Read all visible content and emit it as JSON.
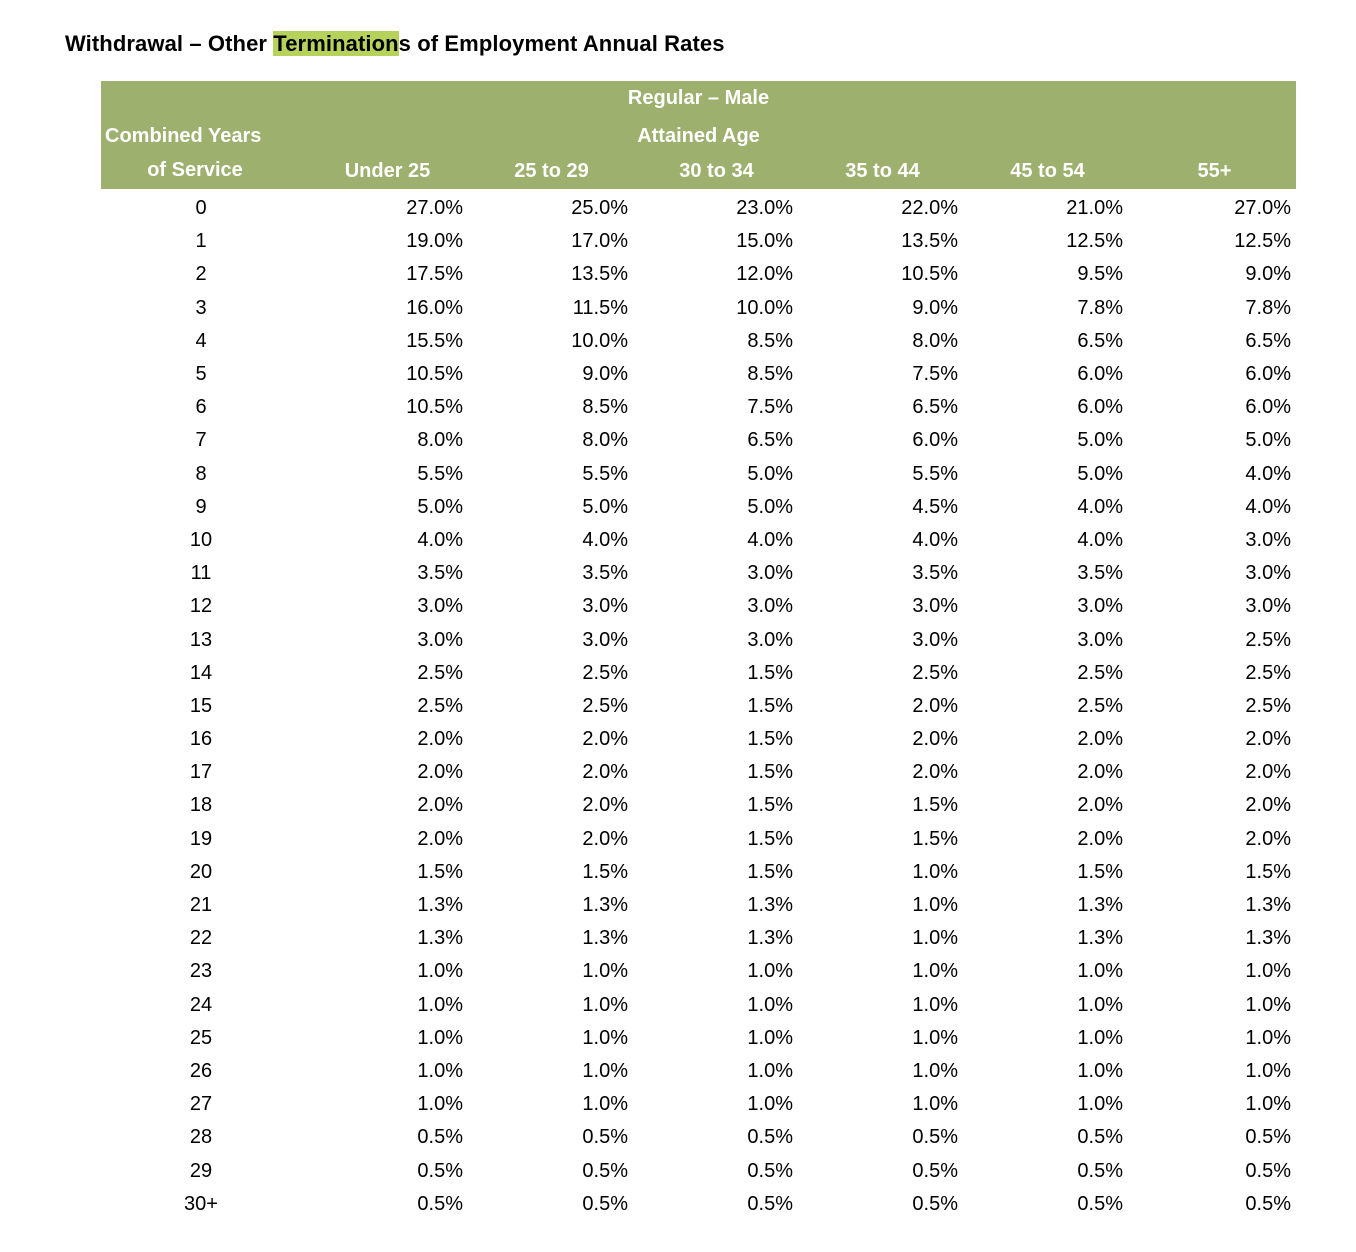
{
  "title": {
    "pre": "Withdrawal – Other ",
    "highlight": "Termination",
    "post": "s of Employment Annual Rates"
  },
  "header": {
    "group": "Regular – Male",
    "service_label_line1": "Combined Years",
    "service_label_line2": "of Service",
    "attained_age": "Attained Age",
    "columns": [
      "Under 25",
      "25 to 29",
      "30 to 34",
      "35 to 44",
      "45 to 54",
      "55+"
    ]
  },
  "rows": [
    {
      "service": "0",
      "values": [
        "27.0%",
        "25.0%",
        "23.0%",
        "22.0%",
        "21.0%",
        "27.0%"
      ]
    },
    {
      "service": "1",
      "values": [
        "19.0%",
        "17.0%",
        "15.0%",
        "13.5%",
        "12.5%",
        "12.5%"
      ]
    },
    {
      "service": "2",
      "values": [
        "17.5%",
        "13.5%",
        "12.0%",
        "10.5%",
        "9.5%",
        "9.0%"
      ]
    },
    {
      "service": "3",
      "values": [
        "16.0%",
        "11.5%",
        "10.0%",
        "9.0%",
        "7.8%",
        "7.8%"
      ]
    },
    {
      "service": "4",
      "values": [
        "15.5%",
        "10.0%",
        "8.5%",
        "8.0%",
        "6.5%",
        "6.5%"
      ]
    },
    {
      "service": "5",
      "values": [
        "10.5%",
        "9.0%",
        "8.5%",
        "7.5%",
        "6.0%",
        "6.0%"
      ]
    },
    {
      "service": "6",
      "values": [
        "10.5%",
        "8.5%",
        "7.5%",
        "6.5%",
        "6.0%",
        "6.0%"
      ]
    },
    {
      "service": "7",
      "values": [
        "8.0%",
        "8.0%",
        "6.5%",
        "6.0%",
        "5.0%",
        "5.0%"
      ]
    },
    {
      "service": "8",
      "values": [
        "5.5%",
        "5.5%",
        "5.0%",
        "5.5%",
        "5.0%",
        "4.0%"
      ]
    },
    {
      "service": "9",
      "values": [
        "5.0%",
        "5.0%",
        "5.0%",
        "4.5%",
        "4.0%",
        "4.0%"
      ]
    },
    {
      "service": "10",
      "values": [
        "4.0%",
        "4.0%",
        "4.0%",
        "4.0%",
        "4.0%",
        "3.0%"
      ]
    },
    {
      "service": "11",
      "values": [
        "3.5%",
        "3.5%",
        "3.0%",
        "3.5%",
        "3.5%",
        "3.0%"
      ]
    },
    {
      "service": "12",
      "values": [
        "3.0%",
        "3.0%",
        "3.0%",
        "3.0%",
        "3.0%",
        "3.0%"
      ]
    },
    {
      "service": "13",
      "values": [
        "3.0%",
        "3.0%",
        "3.0%",
        "3.0%",
        "3.0%",
        "2.5%"
      ]
    },
    {
      "service": "14",
      "values": [
        "2.5%",
        "2.5%",
        "1.5%",
        "2.5%",
        "2.5%",
        "2.5%"
      ]
    },
    {
      "service": "15",
      "values": [
        "2.5%",
        "2.5%",
        "1.5%",
        "2.0%",
        "2.5%",
        "2.5%"
      ]
    },
    {
      "service": "16",
      "values": [
        "2.0%",
        "2.0%",
        "1.5%",
        "2.0%",
        "2.0%",
        "2.0%"
      ]
    },
    {
      "service": "17",
      "values": [
        "2.0%",
        "2.0%",
        "1.5%",
        "2.0%",
        "2.0%",
        "2.0%"
      ]
    },
    {
      "service": "18",
      "values": [
        "2.0%",
        "2.0%",
        "1.5%",
        "1.5%",
        "2.0%",
        "2.0%"
      ]
    },
    {
      "service": "19",
      "values": [
        "2.0%",
        "2.0%",
        "1.5%",
        "1.5%",
        "2.0%",
        "2.0%"
      ]
    },
    {
      "service": "20",
      "values": [
        "1.5%",
        "1.5%",
        "1.5%",
        "1.0%",
        "1.5%",
        "1.5%"
      ]
    },
    {
      "service": "21",
      "values": [
        "1.3%",
        "1.3%",
        "1.3%",
        "1.0%",
        "1.3%",
        "1.3%"
      ]
    },
    {
      "service": "22",
      "values": [
        "1.3%",
        "1.3%",
        "1.3%",
        "1.0%",
        "1.3%",
        "1.3%"
      ]
    },
    {
      "service": "23",
      "values": [
        "1.0%",
        "1.0%",
        "1.0%",
        "1.0%",
        "1.0%",
        "1.0%"
      ]
    },
    {
      "service": "24",
      "values": [
        "1.0%",
        "1.0%",
        "1.0%",
        "1.0%",
        "1.0%",
        "1.0%"
      ]
    },
    {
      "service": "25",
      "values": [
        "1.0%",
        "1.0%",
        "1.0%",
        "1.0%",
        "1.0%",
        "1.0%"
      ]
    },
    {
      "service": "26",
      "values": [
        "1.0%",
        "1.0%",
        "1.0%",
        "1.0%",
        "1.0%",
        "1.0%"
      ]
    },
    {
      "service": "27",
      "values": [
        "1.0%",
        "1.0%",
        "1.0%",
        "1.0%",
        "1.0%",
        "1.0%"
      ]
    },
    {
      "service": "28",
      "values": [
        "0.5%",
        "0.5%",
        "0.5%",
        "0.5%",
        "0.5%",
        "0.5%"
      ]
    },
    {
      "service": "29",
      "values": [
        "0.5%",
        "0.5%",
        "0.5%",
        "0.5%",
        "0.5%",
        "0.5%"
      ]
    },
    {
      "service": "30+",
      "values": [
        "0.5%",
        "0.5%",
        "0.5%",
        "0.5%",
        "0.5%",
        "0.5%"
      ]
    }
  ],
  "colors": {
    "header_bg": "#9db06e",
    "header_text": "#ffffff",
    "highlight": "#b6d25b"
  }
}
